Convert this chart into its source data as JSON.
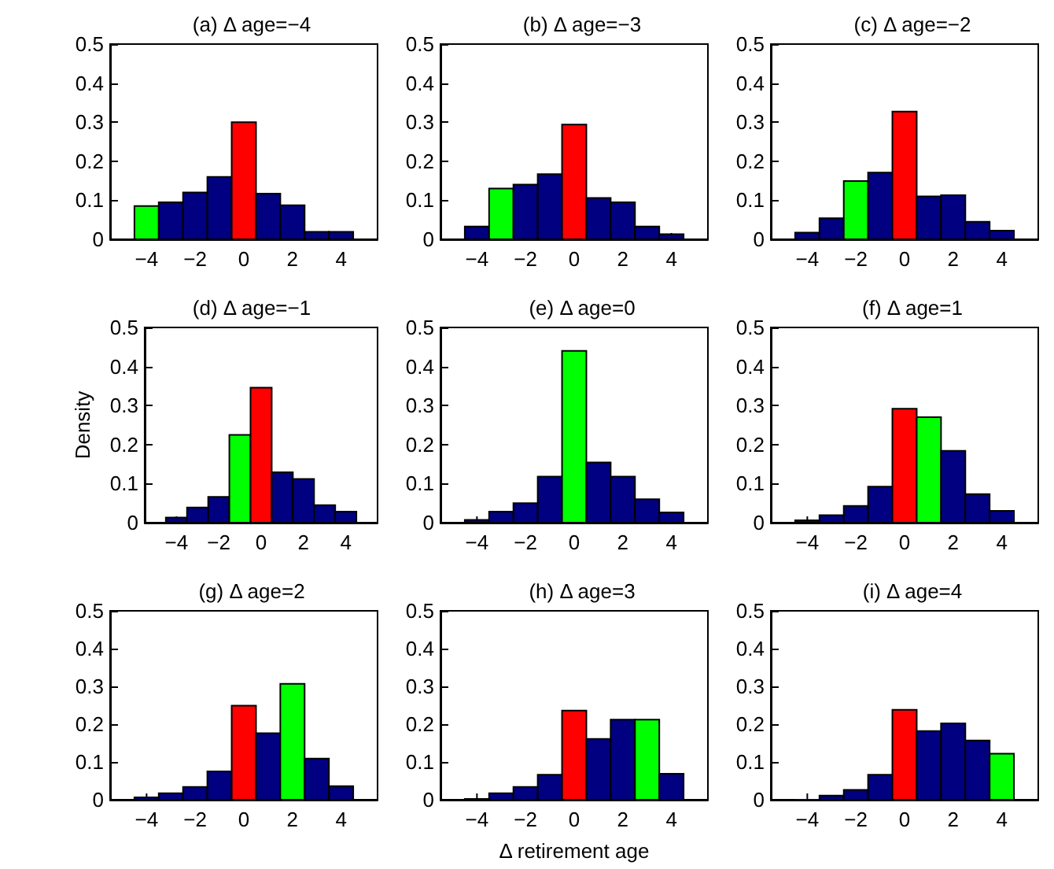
{
  "chart_data": [
    {
      "type": "histogram",
      "title": "(a) Δ age=−4",
      "bins": [
        -4.5,
        -3.5,
        -2.5,
        -1.5,
        -0.5,
        0.5,
        1.5,
        2.5,
        3.5,
        4.5
      ],
      "values": [
        0.085,
        0.095,
        0.12,
        0.16,
        0.3,
        0.117,
        0.087,
        0.019,
        0.019
      ],
      "colors": [
        "#00ff00",
        "#000080",
        "#000080",
        "#000080",
        "#ff0000",
        "#000080",
        "#000080",
        "#000080",
        "#000080"
      ],
      "xlim": [
        -5.5,
        5.5
      ],
      "ylim": [
        0,
        0.5
      ],
      "xticks": [
        -4,
        -2,
        0,
        2,
        4
      ],
      "yticks": [
        0,
        0.1,
        0.2,
        0.3,
        0.4,
        0.5
      ],
      "grid": false
    },
    {
      "type": "histogram",
      "title": "(b) Δ age=−3",
      "bins": [
        -4.5,
        -3.5,
        -2.5,
        -1.5,
        -0.5,
        0.5,
        1.5,
        2.5,
        3.5,
        4.5
      ],
      "values": [
        0.033,
        0.13,
        0.14,
        0.167,
        0.294,
        0.106,
        0.095,
        0.033,
        0.013
      ],
      "colors": [
        "#000080",
        "#00ff00",
        "#000080",
        "#000080",
        "#ff0000",
        "#000080",
        "#000080",
        "#000080",
        "#000080"
      ],
      "xlim": [
        -5.5,
        5.5
      ],
      "ylim": [
        0,
        0.5
      ],
      "xticks": [
        -4,
        -2,
        0,
        2,
        4
      ],
      "yticks": [
        0,
        0.1,
        0.2,
        0.3,
        0.4,
        0.5
      ],
      "grid": false
    },
    {
      "type": "histogram",
      "title": "(c) Δ age=−2",
      "bins": [
        -4.5,
        -3.5,
        -2.5,
        -1.5,
        -0.5,
        0.5,
        1.5,
        2.5,
        3.5,
        4.5
      ],
      "values": [
        0.017,
        0.054,
        0.149,
        0.171,
        0.327,
        0.11,
        0.113,
        0.045,
        0.022
      ],
      "colors": [
        "#000080",
        "#000080",
        "#00ff00",
        "#000080",
        "#ff0000",
        "#000080",
        "#000080",
        "#000080",
        "#000080"
      ],
      "xlim": [
        -5.5,
        5.5
      ],
      "ylim": [
        0,
        0.5
      ],
      "xticks": [
        -4,
        -2,
        0,
        2,
        4
      ],
      "yticks": [
        0,
        0.1,
        0.2,
        0.3,
        0.4,
        0.5
      ],
      "grid": false
    },
    {
      "type": "histogram",
      "title": "(d) Δ age=−1",
      "ylabel": "Density",
      "bins": [
        -4.5,
        -3.5,
        -2.5,
        -1.5,
        -0.5,
        0.5,
        1.5,
        2.5,
        3.5,
        4.5
      ],
      "values": [
        0.013,
        0.039,
        0.066,
        0.225,
        0.346,
        0.129,
        0.112,
        0.045,
        0.028
      ],
      "colors": [
        "#000080",
        "#000080",
        "#000080",
        "#00ff00",
        "#ff0000",
        "#000080",
        "#000080",
        "#000080",
        "#000080"
      ],
      "xlim": [
        -5.5,
        5.5
      ],
      "ylim": [
        0,
        0.5
      ],
      "xticks": [
        -4,
        -2,
        0,
        2,
        4
      ],
      "yticks": [
        0,
        0.1,
        0.2,
        0.3,
        0.4,
        0.5
      ],
      "grid": false
    },
    {
      "type": "histogram",
      "title": "(e) Δ age=0",
      "bins": [
        -4.5,
        -3.5,
        -2.5,
        -1.5,
        -0.5,
        0.5,
        1.5,
        2.5,
        3.5,
        4.5
      ],
      "values": [
        0.007,
        0.028,
        0.05,
        0.118,
        0.44,
        0.154,
        0.118,
        0.06,
        0.026
      ],
      "colors": [
        "#000080",
        "#000080",
        "#000080",
        "#000080",
        "#00ff00",
        "#000080",
        "#000080",
        "#000080",
        "#000080"
      ],
      "xlim": [
        -5.5,
        5.5
      ],
      "ylim": [
        0,
        0.5
      ],
      "xticks": [
        -4,
        -2,
        0,
        2,
        4
      ],
      "yticks": [
        0,
        0.1,
        0.2,
        0.3,
        0.4,
        0.5
      ],
      "grid": false
    },
    {
      "type": "histogram",
      "title": "(f) Δ age=1",
      "bins": [
        -4.5,
        -3.5,
        -2.5,
        -1.5,
        -0.5,
        0.5,
        1.5,
        2.5,
        3.5,
        4.5
      ],
      "values": [
        0.006,
        0.019,
        0.043,
        0.092,
        0.292,
        0.27,
        0.184,
        0.073,
        0.03
      ],
      "colors": [
        "#000080",
        "#000080",
        "#000080",
        "#000080",
        "#ff0000",
        "#00ff00",
        "#000080",
        "#000080",
        "#000080"
      ],
      "xlim": [
        -5.5,
        5.5
      ],
      "ylim": [
        0,
        0.5
      ],
      "xticks": [
        -4,
        -2,
        0,
        2,
        4
      ],
      "yticks": [
        0,
        0.1,
        0.2,
        0.3,
        0.4,
        0.5
      ],
      "grid": false
    },
    {
      "type": "histogram",
      "title": "(g) Δ age=2",
      "bins": [
        -4.5,
        -3.5,
        -2.5,
        -1.5,
        -0.5,
        0.5,
        1.5,
        2.5,
        3.5,
        4.5
      ],
      "values": [
        0.006,
        0.017,
        0.034,
        0.075,
        0.249,
        0.176,
        0.307,
        0.109,
        0.036
      ],
      "colors": [
        "#000080",
        "#000080",
        "#000080",
        "#000080",
        "#ff0000",
        "#000080",
        "#00ff00",
        "#000080",
        "#000080"
      ],
      "xlim": [
        -5.5,
        5.5
      ],
      "ylim": [
        0,
        0.5
      ],
      "xticks": [
        -4,
        -2,
        0,
        2,
        4
      ],
      "yticks": [
        0,
        0.1,
        0.2,
        0.3,
        0.4,
        0.5
      ],
      "grid": false
    },
    {
      "type": "histogram",
      "title": "(h) Δ age=3",
      "xlabel": "Δ retirement age",
      "bins": [
        -4.5,
        -3.5,
        -2.5,
        -1.5,
        -0.5,
        0.5,
        1.5,
        2.5,
        3.5,
        4.5
      ],
      "values": [
        0.002,
        0.017,
        0.034,
        0.066,
        0.236,
        0.161,
        0.212,
        0.212,
        0.069
      ],
      "colors": [
        "#000080",
        "#000080",
        "#000080",
        "#000080",
        "#ff0000",
        "#000080",
        "#000080",
        "#00ff00",
        "#000080"
      ],
      "xlim": [
        -5.5,
        5.5
      ],
      "ylim": [
        0,
        0.5
      ],
      "xticks": [
        -4,
        -2,
        0,
        2,
        4
      ],
      "yticks": [
        0,
        0.1,
        0.2,
        0.3,
        0.4,
        0.5
      ],
      "grid": false
    },
    {
      "type": "histogram",
      "title": "(i) Δ age=4",
      "bins": [
        -4.5,
        -3.5,
        -2.5,
        -1.5,
        -0.5,
        0.5,
        1.5,
        2.5,
        3.5,
        4.5
      ],
      "values": [
        0,
        0.011,
        0.026,
        0.066,
        0.238,
        0.182,
        0.202,
        0.157,
        0.122
      ],
      "colors": [
        "#000080",
        "#000080",
        "#000080",
        "#000080",
        "#ff0000",
        "#000080",
        "#000080",
        "#000080",
        "#00ff00"
      ],
      "xlim": [
        -5.5,
        5.5
      ],
      "ylim": [
        0,
        0.5
      ],
      "xticks": [
        -4,
        -2,
        0,
        2,
        4
      ],
      "yticks": [
        0,
        0.1,
        0.2,
        0.3,
        0.4,
        0.5
      ],
      "grid": false
    }
  ]
}
